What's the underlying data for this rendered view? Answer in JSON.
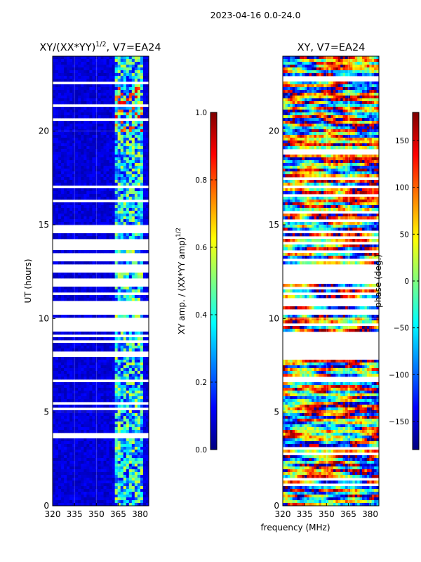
{
  "header": {
    "suptitle": "2023-04-16 0.0-24.0"
  },
  "colors": {
    "jet": [
      "#00007f",
      "#0000ff",
      "#007fff",
      "#00ffff",
      "#7fff7f",
      "#ffff00",
      "#ff7f00",
      "#ff0000",
      "#7f0000"
    ],
    "background": "#ffffff"
  },
  "chart_data": [
    {
      "type": "heatmap",
      "title_main": "XY/(XX*YY)",
      "title_sup": "1/2",
      "title_tail": ", V7=EA24",
      "xlabel": "",
      "ylabel": "UT (hours)",
      "xlim": [
        320,
        386
      ],
      "ylim": [
        0,
        24
      ],
      "xticks": [
        320,
        335,
        350,
        365,
        380
      ],
      "xtick_labels": [
        "320",
        "335",
        "350",
        "365",
        "380"
      ],
      "yticks": [
        0,
        5,
        10,
        15,
        20
      ],
      "ytick_labels": [
        "0",
        "5",
        "10",
        "15",
        "20"
      ],
      "colorbar": {
        "label_main": "XY amp. / (XX*YY amp)",
        "label_sup": "1/2",
        "vmin": 0.0,
        "vmax": 1.0,
        "ticks": [
          0.0,
          0.2,
          0.4,
          0.6,
          0.8,
          1.0
        ],
        "tick_labels": [
          "0.0",
          "0.2",
          "0.4",
          "0.6",
          "0.8",
          "1.0"
        ]
      },
      "bright_band_mhz": [
        362,
        381
      ],
      "typical_value_outside_band": 0.05,
      "typical_value_in_band": 0.35
    },
    {
      "type": "heatmap",
      "title": "XY, V7=EA24",
      "xlabel": "frequency (MHz)",
      "ylabel": "",
      "xlim": [
        320,
        386
      ],
      "ylim": [
        0,
        24
      ],
      "xticks": [
        320,
        335,
        350,
        365,
        380
      ],
      "xtick_labels": [
        "320",
        "335",
        "350",
        "365",
        "380"
      ],
      "yticks": [
        0,
        5,
        10,
        15,
        20
      ],
      "ytick_labels": [
        "0",
        "5",
        "10",
        "15",
        "20"
      ],
      "colorbar": {
        "label": "phase (deg.)",
        "vmin": -180,
        "vmax": 180,
        "ticks": [
          -150,
          -100,
          -50,
          0,
          50,
          100,
          150
        ],
        "tick_labels": [
          "−150",
          "−100",
          "−50",
          "0",
          "50",
          "100",
          "150"
        ]
      },
      "phase_range_deg": [
        -180,
        180
      ]
    }
  ]
}
